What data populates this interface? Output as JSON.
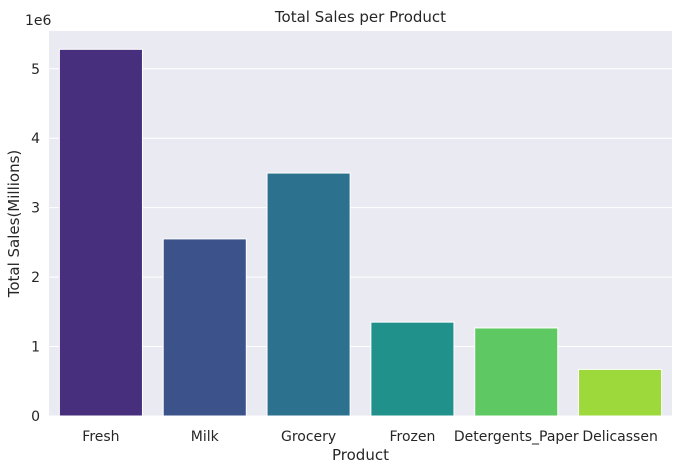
{
  "chart_data": {
    "type": "bar",
    "title": "Total Sales per Product",
    "xlabel": "Product",
    "ylabel": "Total Sales(Millions)",
    "offset_label": "1e6",
    "categories": [
      "Fresh",
      "Milk",
      "Grocery",
      "Frozen",
      "Detergents_Paper",
      "Delicassen"
    ],
    "values": [
      5280131,
      2550357,
      3498562,
      1351650,
      1267857,
      670943
    ],
    "colors": [
      "#472f7d",
      "#3b528b",
      "#2c728e",
      "#21918c",
      "#5ec962",
      "#9dd93b"
    ],
    "yticks": [
      0,
      1,
      2,
      3,
      4,
      5
    ],
    "ylim": [
      0,
      5.544
    ],
    "grid": true,
    "background": "#eaeaf2"
  }
}
